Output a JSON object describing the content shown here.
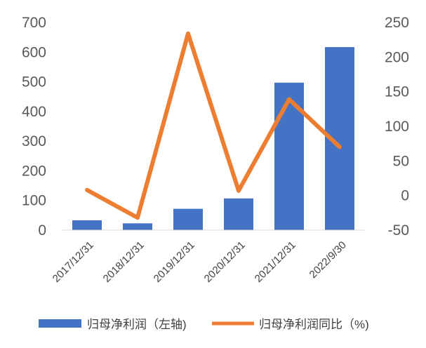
{
  "chart_data": {
    "type": "bar",
    "categories": [
      "2017/12/31",
      "2018/12/31",
      "2019/12/31",
      "2020/12/31",
      "2021/12/31",
      "2022/9/30"
    ],
    "series": [
      {
        "name": "归母净利润（左轴)",
        "type": "bar",
        "axis": "left",
        "color": "#4472C4",
        "values": [
          33,
          23,
          72,
          107,
          497,
          617
        ]
      },
      {
        "name": "归母净利润同比（%)",
        "type": "line",
        "axis": "right",
        "color": "#ED7D31",
        "values": [
          8,
          -32,
          234,
          7,
          139,
          70
        ]
      }
    ],
    "y_left": {
      "min": 0,
      "max": 700,
      "step": 100,
      "ticks": [
        "0",
        "100",
        "200",
        "300",
        "400",
        "500",
        "600",
        "700"
      ]
    },
    "y_right": {
      "min": -50,
      "max": 250,
      "step": 50,
      "ticks": [
        "-50",
        "0",
        "50",
        "100",
        "150",
        "200",
        "250"
      ]
    },
    "legend_position": "bottom",
    "grid": false
  }
}
